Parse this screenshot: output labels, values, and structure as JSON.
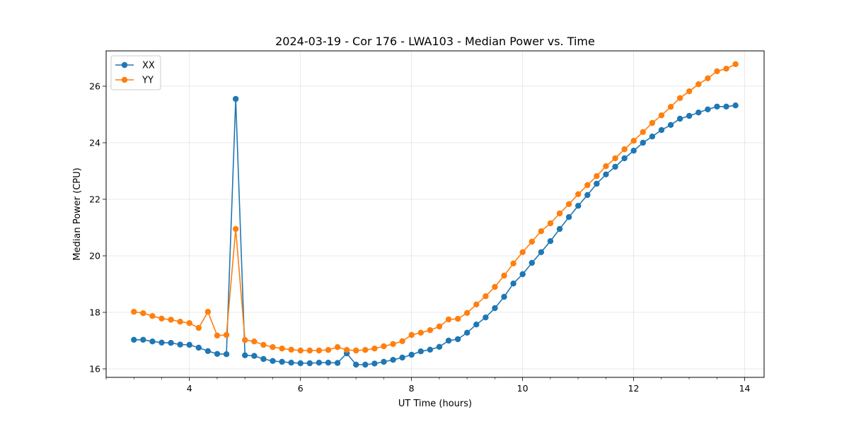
{
  "chart_data": {
    "type": "line",
    "title": "2024-03-19 - Cor 176 - LWA103 - Median Power vs. Time",
    "xlabel": "UT Time (hours)",
    "ylabel": "Median Power (CPU)",
    "xlim": [
      2.5,
      14.35
    ],
    "ylim": [
      15.7,
      27.25
    ],
    "xticks": [
      4,
      6,
      8,
      10,
      12,
      14
    ],
    "yticks": [
      16,
      18,
      20,
      22,
      24,
      26
    ],
    "grid": true,
    "legend_position": "top-left",
    "x_start": 3.0,
    "x_step": 0.1667,
    "series": [
      {
        "name": "XX",
        "color": "#1f77b4",
        "values": [
          17.03,
          17.03,
          16.97,
          16.93,
          16.92,
          16.86,
          16.85,
          16.75,
          16.63,
          16.53,
          16.52,
          25.55,
          16.48,
          16.46,
          16.35,
          16.28,
          16.25,
          16.22,
          16.2,
          16.2,
          16.22,
          16.22,
          16.21,
          16.55,
          16.15,
          16.15,
          16.19,
          16.25,
          16.32,
          16.4,
          16.5,
          16.62,
          16.68,
          16.78,
          17.0,
          17.05,
          17.28,
          17.57,
          17.82,
          18.15,
          18.55,
          19.02,
          19.35,
          19.75,
          20.13,
          20.52,
          20.95,
          21.37,
          21.77,
          22.15,
          22.55,
          22.88,
          23.15,
          23.45,
          23.72,
          24.0,
          24.22,
          24.45,
          24.63,
          24.85,
          24.95,
          25.07,
          25.18,
          25.28,
          25.28,
          25.32
        ]
      },
      {
        "name": "YY",
        "color": "#ff7f0e",
        "values": [
          18.02,
          17.97,
          17.87,
          17.78,
          17.74,
          17.67,
          17.62,
          17.45,
          18.02,
          17.18,
          17.2,
          20.95,
          17.02,
          16.97,
          16.85,
          16.77,
          16.72,
          16.68,
          16.65,
          16.65,
          16.65,
          16.67,
          16.77,
          16.67,
          16.65,
          16.67,
          16.72,
          16.8,
          16.88,
          16.98,
          17.2,
          17.28,
          17.37,
          17.5,
          17.75,
          17.77,
          17.98,
          18.28,
          18.57,
          18.9,
          19.3,
          19.73,
          20.13,
          20.5,
          20.87,
          21.15,
          21.5,
          21.83,
          22.18,
          22.5,
          22.82,
          23.17,
          23.45,
          23.77,
          24.07,
          24.38,
          24.7,
          24.97,
          25.27,
          25.58,
          25.82,
          26.07,
          26.28,
          26.53,
          26.62,
          26.78
        ]
      }
    ]
  }
}
